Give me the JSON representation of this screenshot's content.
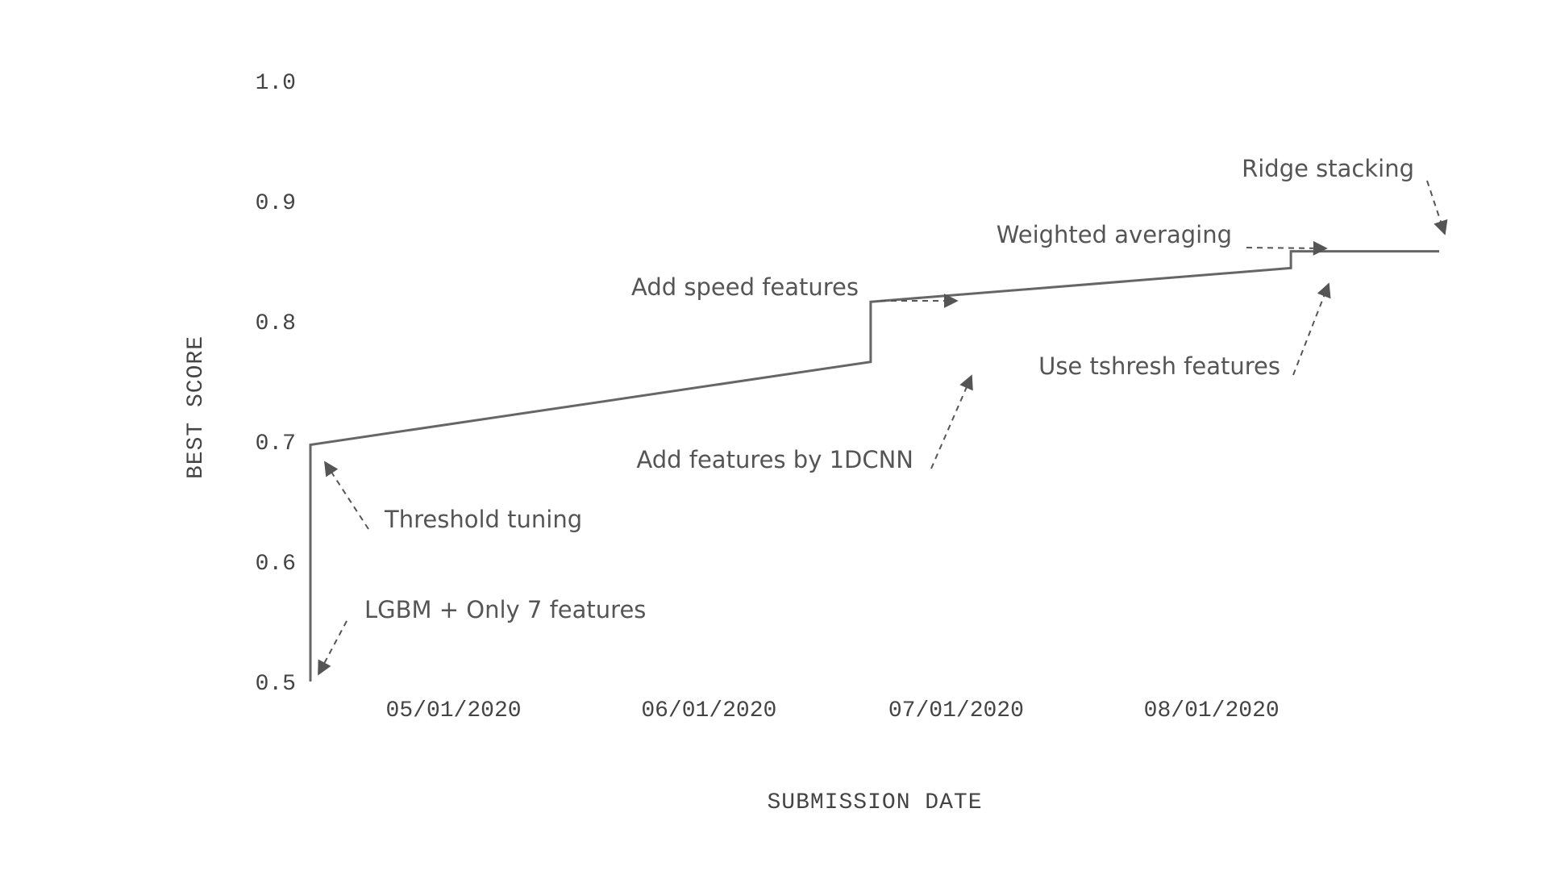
{
  "chart_data": {
    "type": "line",
    "step": true,
    "xlabel": "SUBMISSION DATE",
    "ylabel": "BEST SCORE",
    "ylim": [
      0.5,
      1.0
    ],
    "xlim": [
      "2020-04-24",
      "2020-09-08"
    ],
    "grid": false,
    "legend": "none",
    "y_ticks": [
      "0.5",
      "0.6",
      "0.7",
      "0.8",
      "0.9",
      "1.0"
    ],
    "x_ticks": [
      {
        "date": "2020-05-01",
        "label": "05/01/2020"
      },
      {
        "date": "2020-06-01",
        "label": "06/01/2020"
      },
      {
        "date": "2020-07-01",
        "label": "07/01/2020"
      },
      {
        "date": "2020-08-01",
        "label": "08/01/2020"
      }
    ],
    "points": [
      {
        "x": "2020-04-24",
        "y": 0.5
      },
      {
        "x": "2020-04-24",
        "y": 0.697
      },
      {
        "x": "2020-07-01",
        "y": 0.766
      },
      {
        "x": "2020-07-01",
        "y": 0.816
      },
      {
        "x": "2020-08-21",
        "y": 0.844
      },
      {
        "x": "2020-08-21",
        "y": 0.858
      },
      {
        "x": "2020-09-08",
        "y": 0.858
      }
    ],
    "annotations": [
      {
        "text": "LGBM + Only 7 features",
        "x": "2020-04-24",
        "y": 0.5
      },
      {
        "text": "Threshold tuning",
        "x": "2020-04-24",
        "y": 0.697
      },
      {
        "text": "Add features by 1DCNN",
        "x": "2020-07-01",
        "y": 0.766
      },
      {
        "text": "Add speed features",
        "x": "2020-07-01",
        "y": 0.816
      },
      {
        "text": "Use tshresh features",
        "x": "2020-08-21",
        "y": 0.844
      },
      {
        "text": "Weighted averaging",
        "x": "2020-08-21",
        "y": 0.858
      },
      {
        "text": "Ridge stacking",
        "x": "2020-09-08",
        "y": 0.858
      }
    ],
    "colors": {
      "line": "#666666",
      "text": "#555555"
    }
  }
}
